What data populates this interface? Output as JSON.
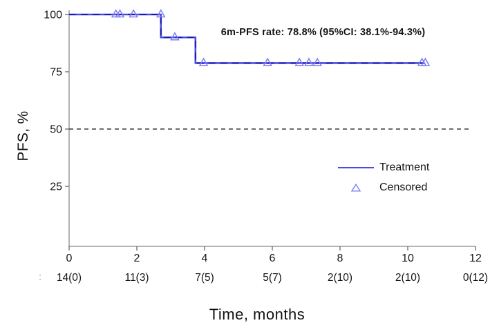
{
  "figure": {
    "y_axis_label": "PFS, %",
    "x_axis_label": "Time, months",
    "annotation": "6m-PFS rate: 78.8% (95%CI: 38.1%-94.3%)"
  },
  "legend": {
    "items": [
      {
        "label": "Treatment",
        "type": "line"
      },
      {
        "label": "Censored",
        "type": "open-triangle"
      }
    ]
  },
  "colors": {
    "curve_solid": "#4b4be0",
    "curve_dash_overlay": "#1a1aa8",
    "censored_marker": "#7d7df2",
    "reference_line": "#3a3a3a",
    "axis_line": "#9a9a9a",
    "tick_mark": "#6a6a6a",
    "tick_label": "#161616"
  },
  "chart_data": {
    "type": "line",
    "subtype": "kaplan-meier-step",
    "title": "",
    "xlabel": "Time, months",
    "ylabel": "PFS, %",
    "xlim": [
      0,
      12
    ],
    "ylim": [
      0,
      100
    ],
    "x_ticks": [
      0,
      2,
      4,
      6,
      8,
      10,
      12
    ],
    "y_ticks": [
      25,
      50,
      75,
      100
    ],
    "grid": false,
    "legend_position": "center-right",
    "annotation": "6m-PFS rate: 78.8% (95%CI: 38.1%-94.3%)",
    "series": [
      {
        "name": "Treatment",
        "type": "step",
        "step_points": [
          [
            0,
            100
          ],
          [
            2.71,
            100
          ],
          [
            2.71,
            90
          ],
          [
            3.73,
            90
          ],
          [
            3.73,
            78.8
          ],
          [
            10.5,
            78.8
          ]
        ]
      }
    ],
    "censored_points": [
      [
        1.38,
        100
      ],
      [
        1.5,
        100
      ],
      [
        1.9,
        100
      ],
      [
        2.71,
        100
      ],
      [
        3.12,
        90
      ],
      [
        3.97,
        78.8
      ],
      [
        5.86,
        78.8
      ],
      [
        6.8,
        78.8
      ],
      [
        7.08,
        78.8
      ],
      [
        7.33,
        78.8
      ],
      [
        10.42,
        78.8
      ],
      [
        10.52,
        78.8
      ]
    ],
    "reference_line": {
      "y": 50,
      "style": "dashed"
    },
    "at_risk": {
      "prefix": ":",
      "times": [
        0,
        2,
        4,
        6,
        8,
        10,
        12
      ],
      "values": [
        "14(0)",
        "11(3)",
        "7(5)",
        "5(7)",
        "2(10)",
        "2(10)",
        "0(12)"
      ]
    }
  }
}
